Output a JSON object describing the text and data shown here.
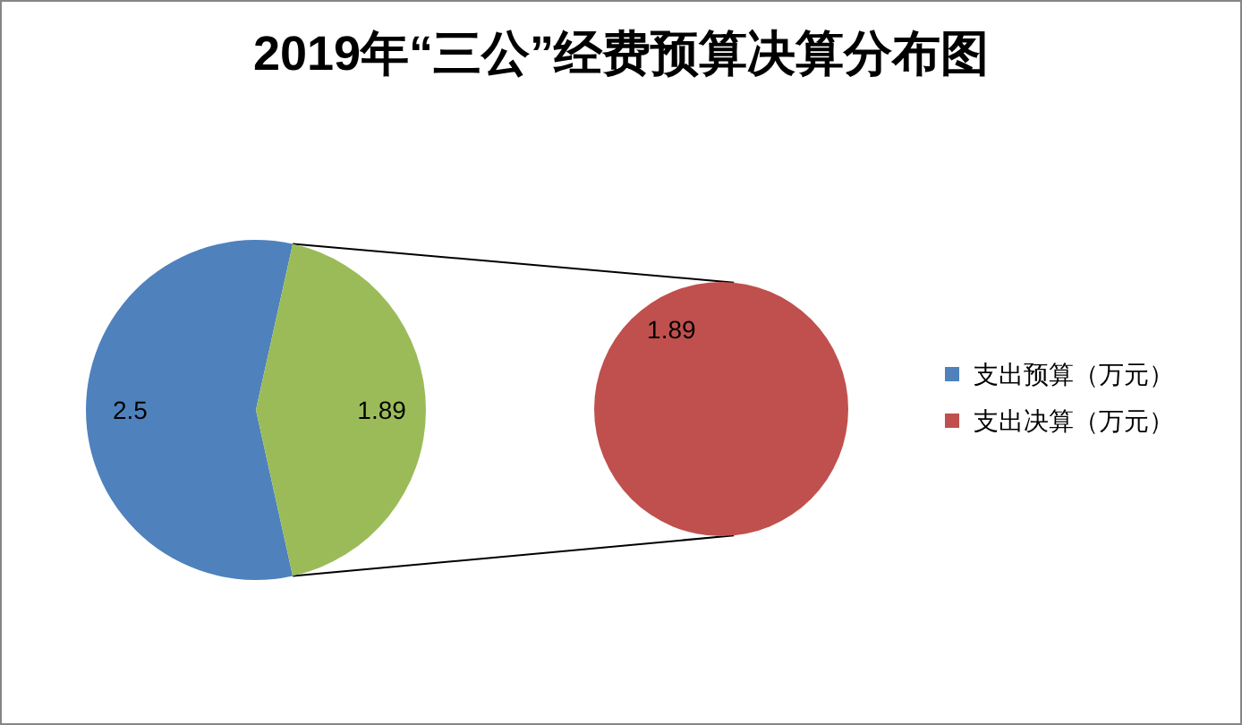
{
  "chart_data": [
    {
      "type": "pie",
      "title": "2019年“三公”经费预算决算分布图",
      "categories": [
        "支出预算（万元）",
        null
      ],
      "values": [
        2.5,
        1.89
      ],
      "colors": [
        "#4f81bd",
        "#9bbb59"
      ],
      "data_labels": true,
      "legend": "right"
    },
    {
      "type": "pie",
      "categories": [
        "支出决算（万元）"
      ],
      "values": [
        1.89
      ],
      "colors": [
        "#c0504d"
      ],
      "data_labels": true,
      "legend": "right"
    }
  ]
}
